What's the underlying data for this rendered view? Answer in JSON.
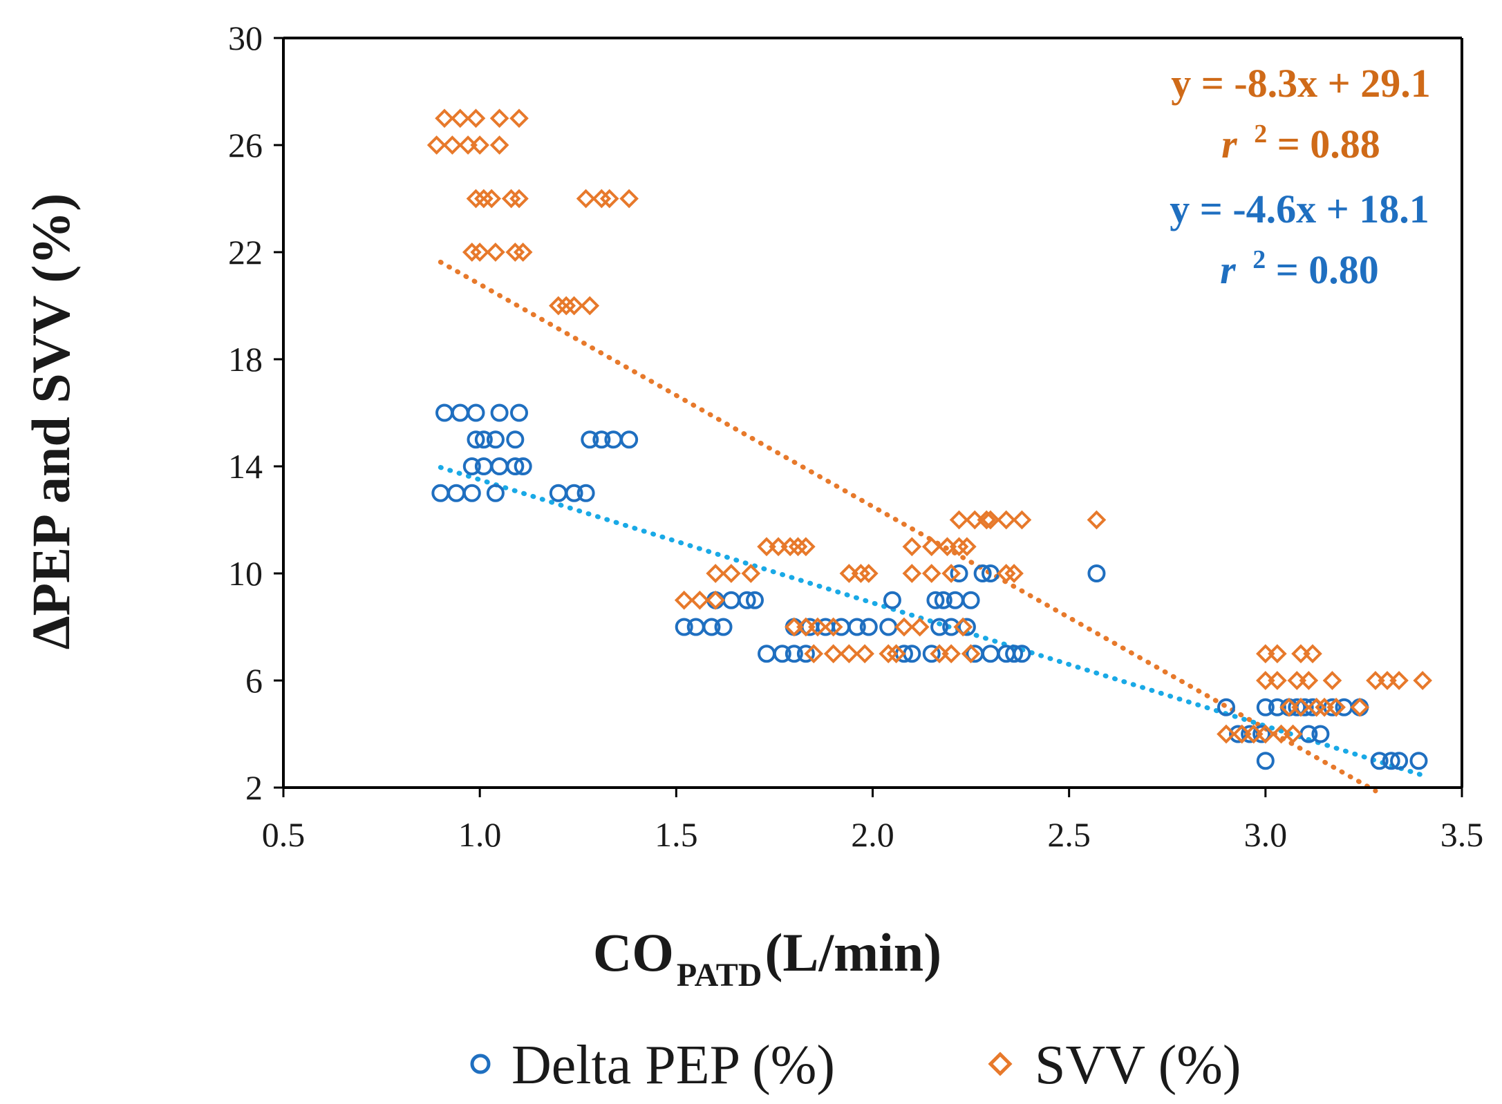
{
  "chart_data": {
    "type": "scatter",
    "xlabel_main": "CO",
    "xlabel_sub": "PATD",
    "xlabel_unit": " (L/min)",
    "ylabel": "ΔPEP and SVV (%)",
    "xlim": [
      0.5,
      3.5
    ],
    "ylim": [
      2,
      30
    ],
    "xticks": [
      0.5,
      1.0,
      1.5,
      2.0,
      2.5,
      3.0,
      3.5
    ],
    "xtick_labels": [
      "0.5",
      "1.0",
      "1.5",
      "2.0",
      "2.5",
      "3.0",
      "3.5"
    ],
    "yticks": [
      2,
      6,
      10,
      14,
      18,
      22,
      26,
      30
    ],
    "ytick_labels": [
      "2",
      "6",
      "10",
      "14",
      "18",
      "22",
      "26",
      "30"
    ],
    "colors": {
      "pep": "#1f6fc0",
      "svv": "#e7792b",
      "pep_trend": "#19a9e6",
      "svv_trend": "#e7792b",
      "svv_annot": "#cf6a18",
      "pep_annot": "#1f6fc0"
    },
    "series": [
      {
        "name": "Delta PEP (%)",
        "marker": "circle",
        "points": [
          [
            0.9,
            13
          ],
          [
            0.94,
            13
          ],
          [
            0.98,
            13
          ],
          [
            1.04,
            13
          ],
          [
            0.91,
            16
          ],
          [
            0.95,
            16
          ],
          [
            0.99,
            16
          ],
          [
            1.05,
            16
          ],
          [
            1.1,
            16
          ],
          [
            0.99,
            15
          ],
          [
            1.01,
            15
          ],
          [
            1.04,
            15
          ],
          [
            1.09,
            15
          ],
          [
            0.98,
            14
          ],
          [
            1.01,
            14
          ],
          [
            1.05,
            14
          ],
          [
            1.09,
            14
          ],
          [
            1.11,
            14
          ],
          [
            1.2,
            13
          ],
          [
            1.24,
            13
          ],
          [
            1.27,
            13
          ],
          [
            1.28,
            15
          ],
          [
            1.31,
            15
          ],
          [
            1.34,
            15
          ],
          [
            1.38,
            15
          ],
          [
            1.52,
            8
          ],
          [
            1.55,
            8
          ],
          [
            1.59,
            8
          ],
          [
            1.62,
            8
          ],
          [
            1.6,
            9
          ],
          [
            1.64,
            9
          ],
          [
            1.68,
            9
          ],
          [
            1.7,
            9
          ],
          [
            1.73,
            7
          ],
          [
            1.77,
            7
          ],
          [
            1.8,
            7
          ],
          [
            1.83,
            7
          ],
          [
            1.8,
            8
          ],
          [
            1.84,
            8
          ],
          [
            1.88,
            8
          ],
          [
            1.92,
            8
          ],
          [
            1.96,
            8
          ],
          [
            1.99,
            8
          ],
          [
            2.04,
            8
          ],
          [
            2.05,
            9
          ],
          [
            2.08,
            7
          ],
          [
            2.1,
            7
          ],
          [
            2.15,
            7
          ],
          [
            2.16,
            9
          ],
          [
            2.18,
            9
          ],
          [
            2.21,
            9
          ],
          [
            2.25,
            9
          ],
          [
            2.17,
            8
          ],
          [
            2.2,
            8
          ],
          [
            2.24,
            8
          ],
          [
            2.22,
            10
          ],
          [
            2.26,
            7
          ],
          [
            2.28,
            10
          ],
          [
            2.3,
            10
          ],
          [
            2.3,
            7
          ],
          [
            2.34,
            7
          ],
          [
            2.36,
            7
          ],
          [
            2.38,
            7
          ],
          [
            2.57,
            10
          ],
          [
            2.9,
            5
          ],
          [
            2.93,
            4
          ],
          [
            2.96,
            4
          ],
          [
            2.99,
            4
          ],
          [
            3.0,
            3
          ],
          [
            3.0,
            5
          ],
          [
            3.03,
            5
          ],
          [
            3.06,
            5
          ],
          [
            3.08,
            5
          ],
          [
            3.1,
            5
          ],
          [
            3.12,
            5
          ],
          [
            3.14,
            4
          ],
          [
            3.11,
            4
          ],
          [
            3.17,
            5
          ],
          [
            3.2,
            5
          ],
          [
            3.24,
            5
          ],
          [
            3.29,
            3
          ],
          [
            3.32,
            3
          ],
          [
            3.34,
            3
          ],
          [
            3.39,
            3
          ]
        ]
      },
      {
        "name": "SVV (%)",
        "marker": "diamond",
        "points": [
          [
            0.91,
            27
          ],
          [
            0.95,
            27
          ],
          [
            0.99,
            27
          ],
          [
            1.05,
            27
          ],
          [
            1.1,
            27
          ],
          [
            0.89,
            26
          ],
          [
            0.93,
            26
          ],
          [
            0.97,
            26
          ],
          [
            1.0,
            26
          ],
          [
            1.05,
            26
          ],
          [
            0.99,
            24
          ],
          [
            1.01,
            24
          ],
          [
            1.03,
            24
          ],
          [
            1.08,
            24
          ],
          [
            1.1,
            24
          ],
          [
            0.98,
            22
          ],
          [
            1.0,
            22
          ],
          [
            1.04,
            22
          ],
          [
            1.09,
            22
          ],
          [
            1.11,
            22
          ],
          [
            1.2,
            20
          ],
          [
            1.22,
            20
          ],
          [
            1.24,
            20
          ],
          [
            1.28,
            20
          ],
          [
            1.27,
            24
          ],
          [
            1.31,
            24
          ],
          [
            1.33,
            24
          ],
          [
            1.38,
            24
          ],
          [
            1.52,
            9
          ],
          [
            1.56,
            9
          ],
          [
            1.6,
            9
          ],
          [
            1.6,
            10
          ],
          [
            1.64,
            10
          ],
          [
            1.69,
            10
          ],
          [
            1.73,
            11
          ],
          [
            1.76,
            11
          ],
          [
            1.79,
            11
          ],
          [
            1.81,
            11
          ],
          [
            1.83,
            11
          ],
          [
            1.8,
            8
          ],
          [
            1.83,
            8
          ],
          [
            1.86,
            8
          ],
          [
            1.9,
            8
          ],
          [
            1.85,
            7
          ],
          [
            1.9,
            7
          ],
          [
            1.94,
            7
          ],
          [
            1.98,
            7
          ],
          [
            1.94,
            10
          ],
          [
            1.97,
            10
          ],
          [
            1.99,
            10
          ],
          [
            2.04,
            7
          ],
          [
            2.06,
            7
          ],
          [
            2.08,
            8
          ],
          [
            2.12,
            8
          ],
          [
            2.1,
            10
          ],
          [
            2.15,
            10
          ],
          [
            2.2,
            10
          ],
          [
            2.1,
            11
          ],
          [
            2.15,
            11
          ],
          [
            2.19,
            11
          ],
          [
            2.17,
            7
          ],
          [
            2.2,
            7
          ],
          [
            2.23,
            8
          ],
          [
            2.22,
            11
          ],
          [
            2.24,
            11
          ],
          [
            2.22,
            12
          ],
          [
            2.26,
            12
          ],
          [
            2.29,
            12
          ],
          [
            2.3,
            12
          ],
          [
            2.34,
            12
          ],
          [
            2.38,
            12
          ],
          [
            2.34,
            10
          ],
          [
            2.36,
            10
          ],
          [
            2.25,
            7
          ],
          [
            2.57,
            12
          ],
          [
            2.9,
            4
          ],
          [
            2.94,
            4
          ],
          [
            2.97,
            4
          ],
          [
            3.0,
            4
          ],
          [
            3.04,
            4
          ],
          [
            3.07,
            4
          ],
          [
            3.0,
            7
          ],
          [
            3.03,
            7
          ],
          [
            3.0,
            6
          ],
          [
            3.03,
            6
          ],
          [
            3.06,
            5
          ],
          [
            3.09,
            5
          ],
          [
            3.08,
            6
          ],
          [
            3.11,
            6
          ],
          [
            3.09,
            7
          ],
          [
            3.12,
            7
          ],
          [
            3.13,
            5
          ],
          [
            3.15,
            5
          ],
          [
            3.18,
            5
          ],
          [
            3.17,
            6
          ],
          [
            3.24,
            5
          ],
          [
            3.28,
            6
          ],
          [
            3.31,
            6
          ],
          [
            3.34,
            6
          ],
          [
            3.4,
            6
          ]
        ]
      }
    ],
    "trendlines": [
      {
        "name": "SVV trend",
        "slope": -8.3,
        "intercept": 29.1,
        "x_range": [
          0.9,
          3.28
        ]
      },
      {
        "name": "PEP trend",
        "slope": -4.6,
        "intercept": 18.1,
        "x_range": [
          0.9,
          3.4
        ]
      }
    ],
    "annotations": {
      "svv_eq": "y = -8.3x + 29.1",
      "svv_r_letter": "r",
      "svv_r_sup": "2",
      "svv_r_val": " = 0.88",
      "pep_eq": "y = -4.6x + 18.1",
      "pep_r_letter": "r",
      "pep_r_sup": "2",
      "pep_r_val": " = 0.80"
    },
    "legend": {
      "position": "bottom",
      "items": [
        "Delta PEP (%)",
        "SVV (%)"
      ]
    }
  }
}
